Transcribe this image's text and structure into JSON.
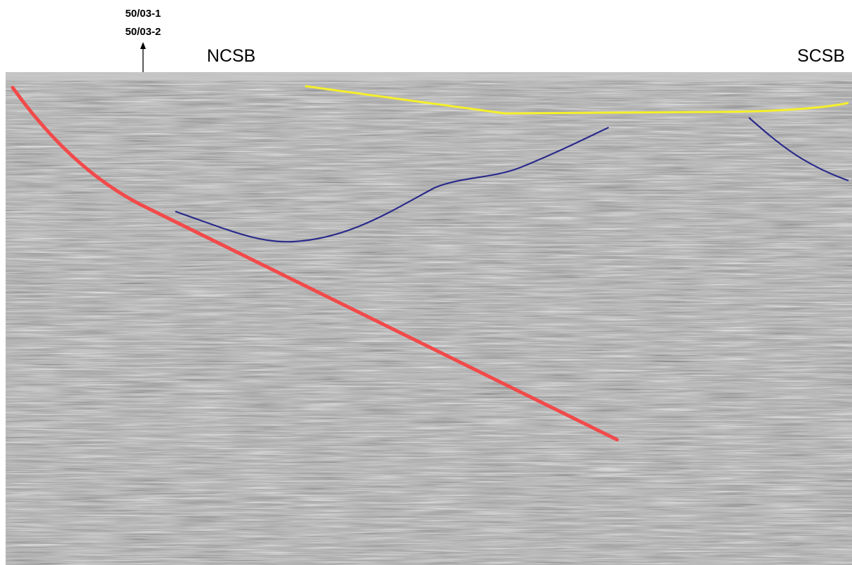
{
  "labels": {
    "well_1": "50/03-1",
    "well_2": "50/03-2",
    "north": "NCSB",
    "south": "SCSB"
  }
}
